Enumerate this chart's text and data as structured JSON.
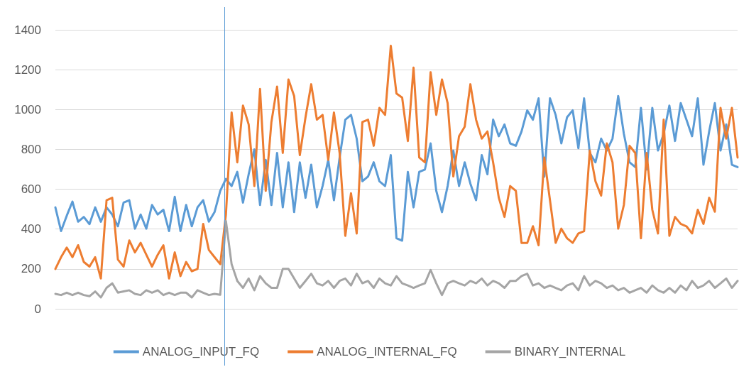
{
  "chart_data": {
    "type": "line",
    "categories": [
      null,
      null,
      null,
      null,
      null,
      null,
      null,
      null,
      null,
      null,
      null,
      null,
      null,
      null,
      null,
      null,
      null,
      null,
      null,
      null,
      null,
      null,
      null,
      null,
      null,
      null,
      null,
      null,
      null,
      null,
      null,
      null,
      null,
      null,
      null,
      null,
      null,
      null,
      null,
      null,
      null,
      null,
      null,
      null,
      null,
      null,
      null,
      null,
      null,
      null,
      null,
      null,
      null,
      null,
      null,
      null,
      null,
      null,
      null,
      null,
      null,
      null,
      null,
      null,
      null,
      null,
      null,
      null,
      null,
      null,
      null,
      null,
      null,
      null,
      null,
      null,
      null,
      null,
      null,
      null,
      null,
      null,
      null,
      null,
      null,
      null,
      null,
      null,
      null,
      null,
      null,
      null,
      null,
      null,
      null,
      null,
      null,
      null,
      null,
      null,
      null,
      null,
      null,
      null,
      null,
      null,
      null,
      null,
      null,
      null,
      null,
      null,
      null,
      null,
      null,
      null,
      null,
      null,
      null,
      null,
      null
    ],
    "series": [
      {
        "name": "ANALOG_INPUT_FQ",
        "color": "#5b9bd5",
        "values": [
          509,
          390,
          467,
          538,
          437,
          461,
          425,
          509,
          437,
          509,
          473,
          414,
          533,
          545,
          402,
          473,
          402,
          521,
          473,
          497,
          390,
          562,
          390,
          521,
          414,
          509,
          545,
          437,
          485,
          592,
          652,
          616,
          687,
          533,
          675,
          800,
          521,
          747,
          521,
          782,
          509,
          735,
          485,
          735,
          557,
          723,
          509,
          616,
          747,
          545,
          759,
          949,
          973,
          854,
          640,
          664,
          735,
          640,
          616,
          771,
          354,
          342,
          687,
          509,
          687,
          699,
          830,
          592,
          485,
          616,
          794,
          616,
          735,
          628,
          545,
          771,
          675,
          949,
          866,
          925,
          830,
          818,
          890,
          996,
          949,
          1056,
          663,
          1056,
          973,
          830,
          961,
          996,
          806,
          1056,
          782,
          735,
          854,
          794,
          854,
          1068,
          878,
          735,
          711,
          1008,
          699,
          1008,
          794,
          878,
          1020,
          842,
          1032,
          949,
          866,
          1056,
          723,
          890,
          1032,
          794,
          925,
          723,
          711
        ]
      },
      {
        "name": "ANALOG_INTERNAL_FQ",
        "color": "#ed7d31",
        "values": [
          200,
          259,
          307,
          259,
          319,
          235,
          212,
          259,
          152,
          545,
          557,
          247,
          212,
          343,
          283,
          331,
          271,
          212,
          271,
          319,
          152,
          283,
          164,
          235,
          188,
          200,
          426,
          295,
          259,
          224,
          473,
          985,
          735,
          1020,
          925,
          616,
          1103,
          592,
          937,
          1115,
          782,
          1151,
          1068,
          771,
          961,
          1127,
          949,
          973,
          747,
          985,
          782,
          366,
          580,
          378,
          937,
          949,
          818,
          1008,
          973,
          1320,
          1080,
          1060,
          842,
          1210,
          759,
          735,
          1187,
          973,
          1151,
          1032,
          664,
          866,
          914,
          1127,
          949,
          854,
          890,
          735,
          557,
          461,
          616,
          592,
          330,
          330,
          414,
          319,
          759,
          545,
          331,
          402,
          354,
          331,
          378,
          390,
          794,
          640,
          568,
          830,
          735,
          402,
          521,
          818,
          782,
          354,
          782,
          497,
          378,
          949,
          366,
          461,
          426,
          414,
          378,
          497,
          426,
          557,
          487,
          1008,
          854,
          1008,
          759
        ]
      },
      {
        "name": "BINARY_INTERNAL",
        "color": "#a5a5a5",
        "values": [
          75,
          69,
          81,
          69,
          81,
          69,
          63,
          87,
          57,
          105,
          128,
          81,
          87,
          93,
          75,
          69,
          93,
          81,
          93,
          69,
          81,
          69,
          81,
          81,
          57,
          93,
          81,
          69,
          75,
          70,
          440,
          224,
          140,
          105,
          152,
          93,
          164,
          128,
          105,
          105,
          200,
          200,
          152,
          105,
          140,
          176,
          128,
          117,
          140,
          105,
          140,
          152,
          117,
          176,
          128,
          140,
          105,
          152,
          128,
          117,
          164,
          128,
          117,
          105,
          117,
          128,
          195,
          128,
          69,
          128,
          140,
          128,
          117,
          140,
          128,
          152,
          117,
          140,
          128,
          105,
          140,
          140,
          164,
          176,
          117,
          128,
          105,
          117,
          105,
          93,
          117,
          128,
          93,
          164,
          117,
          140,
          128,
          105,
          117,
          93,
          105,
          81,
          93,
          105,
          81,
          117,
          93,
          81,
          105,
          81,
          117,
          93,
          140,
          105,
          117,
          140,
          105,
          128,
          152,
          105,
          140
        ]
      }
    ],
    "ylim": [
      0,
      1400
    ],
    "yticks": [
      0,
      200,
      400,
      600,
      800,
      1000,
      1200,
      1400
    ],
    "grid": "y",
    "legend": "bottom",
    "tick_labels": "y",
    "line_style": "solid"
  }
}
